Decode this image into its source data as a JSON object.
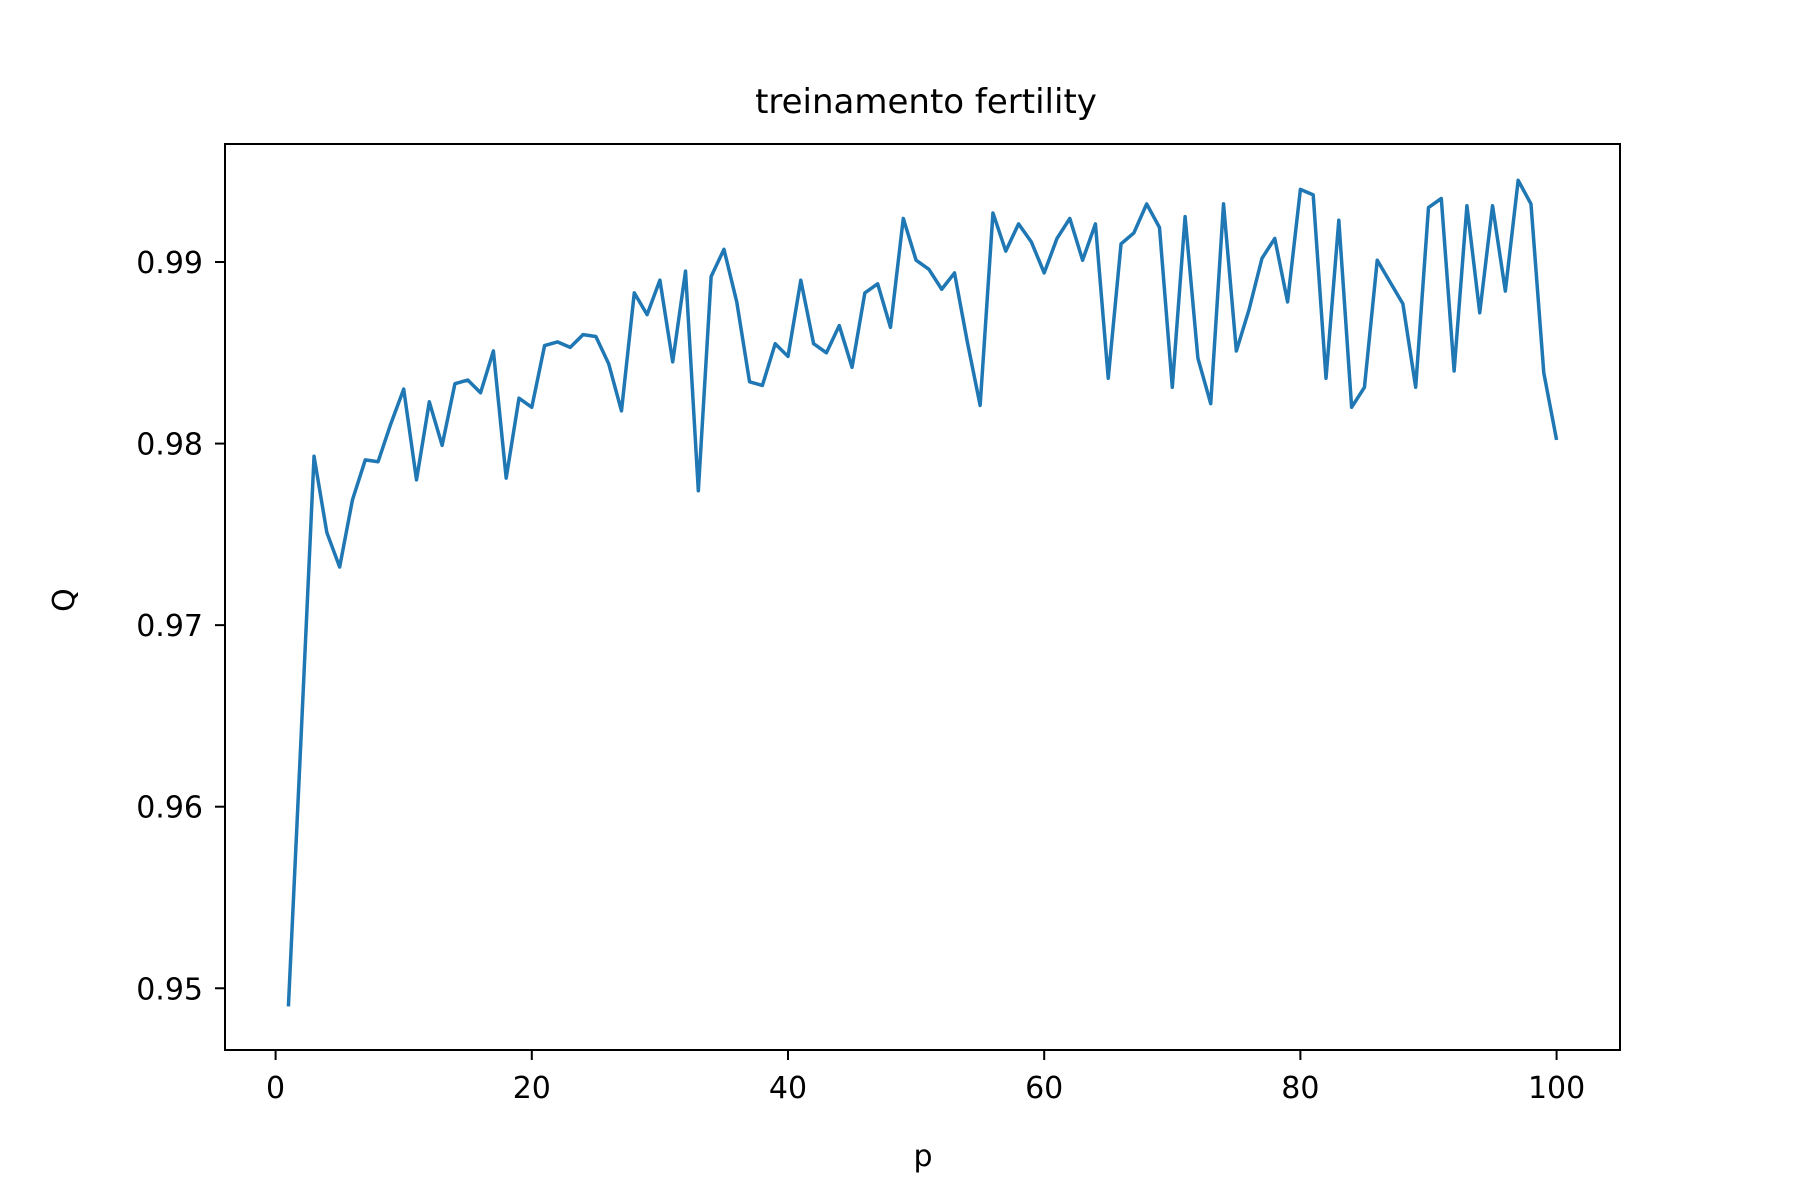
{
  "chart_data": {
    "type": "line",
    "title": "treinamento fertility",
    "xlabel": "p",
    "ylabel": "Q",
    "xlim": [
      -3.95,
      104.95
    ],
    "ylim": [
      0.9466,
      0.9965
    ],
    "xticks": [
      0,
      20,
      40,
      60,
      80,
      100
    ],
    "xtick_labels": [
      "0",
      "20",
      "40",
      "60",
      "80",
      "100"
    ],
    "yticks": [
      0.95,
      0.96,
      0.97,
      0.98,
      0.99
    ],
    "ytick_labels": [
      "0.95",
      "0.96",
      "0.97",
      "0.98",
      "0.99"
    ],
    "grid": false,
    "colors": {
      "series": "#1f77b4"
    },
    "series": [
      {
        "x": [
          1,
          2,
          3,
          4,
          5,
          6,
          7,
          8,
          9,
          10,
          11,
          12,
          13,
          14,
          15,
          16,
          17,
          18,
          19,
          20,
          21,
          22,
          23,
          24,
          25,
          26,
          27,
          28,
          29,
          30,
          31,
          32,
          33,
          34,
          35,
          36,
          37,
          38,
          39,
          40,
          41,
          42,
          43,
          44,
          45,
          46,
          47,
          48,
          49,
          50,
          51,
          52,
          53,
          54,
          55,
          56,
          57,
          58,
          59,
          60,
          61,
          62,
          63,
          64,
          65,
          66,
          67,
          68,
          69,
          70,
          71,
          72,
          73,
          74,
          75,
          76,
          77,
          78,
          79,
          80,
          81,
          82,
          83,
          84,
          85,
          86,
          87,
          88,
          89,
          90,
          91,
          92,
          93,
          94,
          95,
          96,
          97,
          98,
          99,
          100
        ],
        "values": [
          0.949,
          0.964,
          0.9793,
          0.9751,
          0.9732,
          0.9769,
          0.9791,
          0.979,
          0.9811,
          0.983,
          0.978,
          0.9823,
          0.9799,
          0.9833,
          0.9835,
          0.9828,
          0.9851,
          0.9781,
          0.9825,
          0.982,
          0.9854,
          0.9856,
          0.9853,
          0.986,
          0.9859,
          0.9844,
          0.9818,
          0.9883,
          0.9871,
          0.989,
          0.9845,
          0.9895,
          0.9774,
          0.9892,
          0.9907,
          0.9878,
          0.9834,
          0.9832,
          0.9855,
          0.9848,
          0.989,
          0.9855,
          0.985,
          0.9865,
          0.9842,
          0.9883,
          0.9888,
          0.9864,
          0.9924,
          0.9901,
          0.9896,
          0.9885,
          0.9894,
          0.9856,
          0.9821,
          0.9927,
          0.9906,
          0.9921,
          0.9911,
          0.9894,
          0.9913,
          0.9924,
          0.9901,
          0.9921,
          0.9836,
          0.991,
          0.9916,
          0.9932,
          0.9919,
          0.9831,
          0.9925,
          0.9847,
          0.9822,
          0.9932,
          0.9851,
          0.9874,
          0.9902,
          0.9913,
          0.9878,
          0.994,
          0.9937,
          0.9836,
          0.9923,
          0.982,
          0.9831,
          0.9901,
          0.9889,
          0.9877,
          0.9831,
          0.993,
          0.9935,
          0.984,
          0.9931,
          0.9872,
          0.9931,
          0.9884,
          0.9945,
          0.9932,
          0.9839,
          0.9802
        ]
      }
    ]
  }
}
